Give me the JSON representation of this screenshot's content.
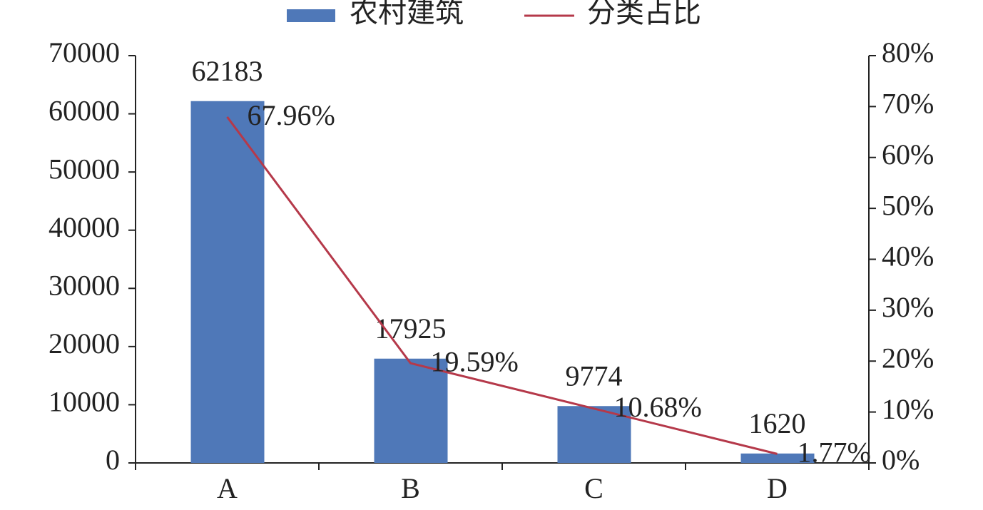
{
  "chart_data": {
    "type": "bar-line",
    "categories": [
      "A",
      "B",
      "C",
      "D"
    ],
    "series": [
      {
        "name": "农村建筑",
        "type": "bar",
        "color": "#4f78b8",
        "values": [
          62183,
          17925,
          9774,
          1620
        ]
      },
      {
        "name": "分类占比",
        "type": "line",
        "axis": "y2",
        "color": "#b5394a",
        "values": [
          67.96,
          19.59,
          10.68,
          1.77
        ],
        "value_labels": [
          "67.96%",
          "19.59%",
          "10.68%",
          "1.77%"
        ]
      }
    ],
    "ylim": [
      0,
      70000
    ],
    "yticks": [
      0,
      10000,
      20000,
      30000,
      40000,
      50000,
      60000,
      70000
    ],
    "y2lim": [
      0,
      80
    ],
    "y2ticks": [
      {
        "value": 0,
        "label": "0%"
      },
      {
        "value": 10,
        "label": "10%"
      },
      {
        "value": 20,
        "label": "20%"
      },
      {
        "value": 30,
        "label": "30%"
      },
      {
        "value": 40,
        "label": "40%"
      },
      {
        "value": 50,
        "label": "50%"
      },
      {
        "value": 60,
        "label": "60%"
      },
      {
        "value": 70,
        "label": "70%"
      },
      {
        "value": 80,
        "label": "80%"
      }
    ],
    "legend": "top"
  }
}
